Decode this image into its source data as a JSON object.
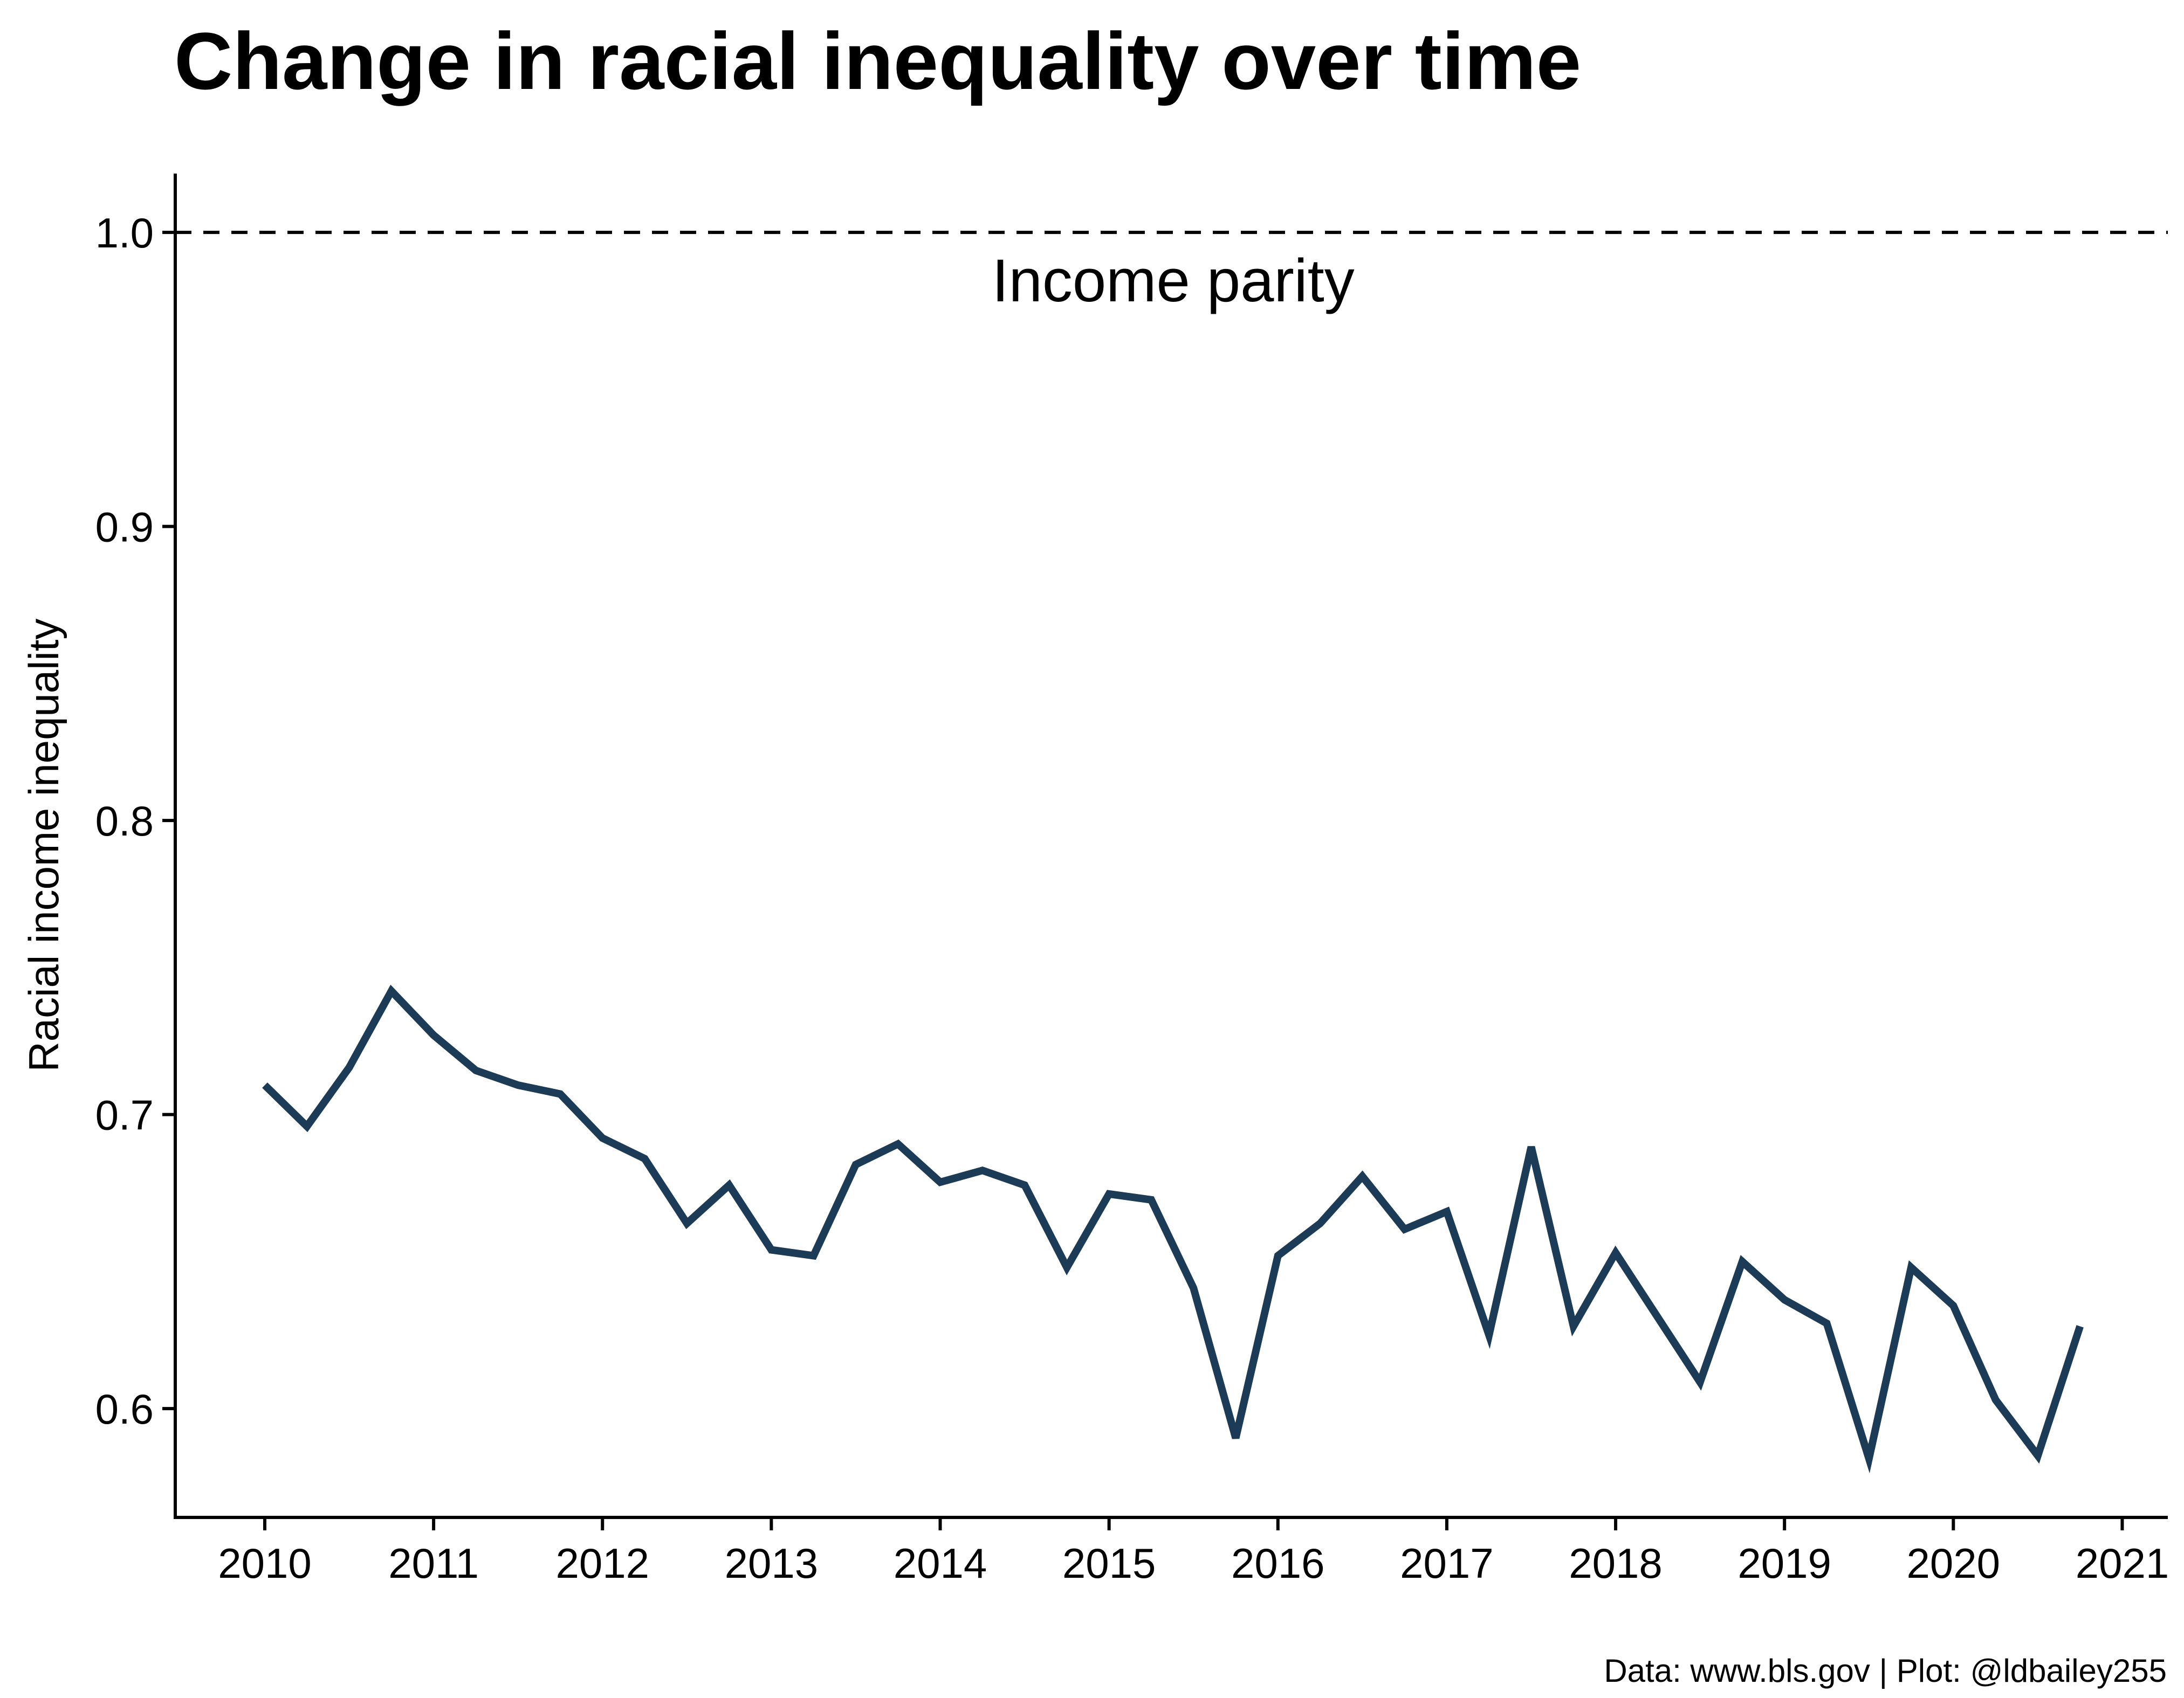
{
  "chart_data": {
    "type": "line",
    "title": "Change in racial inequality over time",
    "xlabel": "",
    "ylabel": "Racial income inequality",
    "caption": "Data: www.bls.gov | Plot: @ldbailey255",
    "xlim": [
      2009.47,
      2021.27
    ],
    "ylim": [
      0.563,
      1.02
    ],
    "x_ticks": [
      2010,
      2011,
      2012,
      2013,
      2014,
      2015,
      2016,
      2017,
      2018,
      2019,
      2020,
      2021
    ],
    "x_tick_labels": [
      "2010",
      "2011",
      "2012",
      "2013",
      "2014",
      "2015",
      "2016",
      "2017",
      "2018",
      "2019",
      "2020",
      "2021"
    ],
    "y_ticks": [
      0.6,
      0.7,
      0.8,
      0.9,
      1.0
    ],
    "y_tick_labels": [
      "0.6",
      "0.7",
      "0.8",
      "0.9",
      "1.0"
    ],
    "grid": false,
    "colors": {
      "series": "#1c3b57",
      "reference_line": "#000000",
      "axis": "#000000"
    },
    "reference_line": {
      "y": 1.0,
      "style": "dashed",
      "label": "Income parity",
      "label_x": 2015.38
    },
    "series": [
      {
        "name": "",
        "x": [
          2010.0,
          2010.25,
          2010.5,
          2010.75,
          2011.0,
          2011.25,
          2011.5,
          2011.75,
          2012.0,
          2012.25,
          2012.5,
          2012.75,
          2013.0,
          2013.25,
          2013.5,
          2013.75,
          2014.0,
          2014.25,
          2014.5,
          2014.75,
          2015.0,
          2015.25,
          2015.5,
          2015.75,
          2016.0,
          2016.25,
          2016.5,
          2016.75,
          2017.0,
          2017.25,
          2017.5,
          2017.75,
          2018.0,
          2018.25,
          2018.5,
          2018.75,
          2019.0,
          2019.25,
          2019.5,
          2019.75,
          2020.0,
          2020.25,
          2020.5,
          2020.75
        ],
        "values": [
          0.71,
          0.696,
          0.716,
          0.742,
          0.727,
          0.715,
          0.71,
          0.707,
          0.692,
          0.685,
          0.663,
          0.676,
          0.654,
          0.652,
          0.683,
          0.69,
          0.677,
          0.681,
          0.676,
          0.648,
          0.673,
          0.671,
          0.641,
          0.59,
          0.652,
          0.663,
          0.679,
          0.661,
          0.667,
          0.625,
          0.689,
          0.628,
          0.653,
          0.631,
          0.609,
          0.65,
          0.637,
          0.629,
          0.583,
          0.648,
          0.635,
          0.603,
          0.584,
          0.628
        ]
      }
    ]
  }
}
